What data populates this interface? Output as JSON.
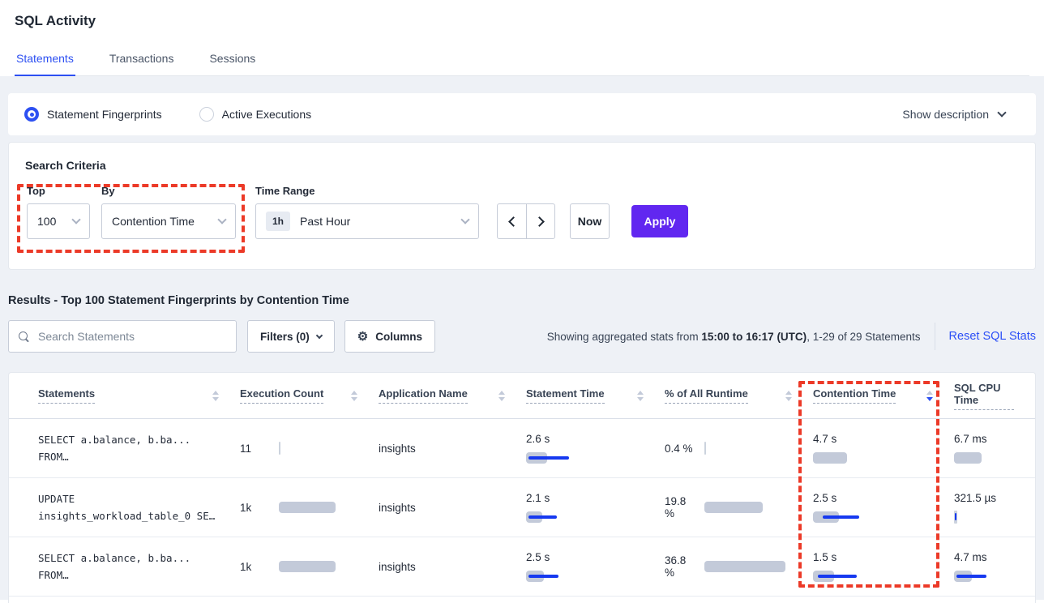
{
  "page_title": "SQL Activity",
  "tabs": [
    {
      "label": "Statements",
      "active": true
    },
    {
      "label": "Transactions",
      "active": false
    },
    {
      "label": "Sessions",
      "active": false
    }
  ],
  "view_toggle": {
    "options": [
      {
        "label": "Statement Fingerprints",
        "selected": true
      },
      {
        "label": "Active Executions",
        "selected": false
      }
    ],
    "show_description": "Show description"
  },
  "search_criteria": {
    "title": "Search Criteria",
    "top": {
      "label": "Top",
      "value": "100"
    },
    "by": {
      "label": "By",
      "value": "Contention Time"
    },
    "time_range": {
      "label": "Time Range",
      "badge": "1h",
      "value": "Past Hour"
    },
    "now_label": "Now",
    "apply_label": "Apply"
  },
  "results": {
    "heading": "Results - Top 100 Statement Fingerprints by Contention Time",
    "search_placeholder": "Search Statements",
    "filters_label": "Filters (0)",
    "columns_label": "Columns",
    "stats_prefix": "Showing aggregated stats from ",
    "stats_bold": "15:00 to 16:17 (UTC)",
    "stats_suffix": ", 1-29 of 29 Statements",
    "reset_link": "Reset SQL Stats"
  },
  "table": {
    "columns": [
      {
        "label": "Statements",
        "sort": "both"
      },
      {
        "label": "Execution Count",
        "sort": "both"
      },
      {
        "label": "Application Name",
        "sort": "both"
      },
      {
        "label": "Statement Time",
        "sort": "both"
      },
      {
        "label": "% of All Runtime",
        "sort": "both"
      },
      {
        "label": "Contention Time",
        "sort": "desc"
      },
      {
        "label": "SQL CPU Time",
        "sort": "none"
      }
    ],
    "sorted_column": "Contention Time",
    "rows": [
      {
        "statement_lines": [
          "SELECT a.balance, b.ba...",
          "FROM…"
        ],
        "execution_count": {
          "text": "11",
          "bar": {
            "gray": 2,
            "tick": true
          }
        },
        "application_name": "insights",
        "statement_time": {
          "text": "2.6 s",
          "bar": {
            "gray": 26,
            "blue_start": 3,
            "blue_len": 50
          }
        },
        "pct_runtime": {
          "text": "0.4 %",
          "bar": {
            "gray": 2,
            "tick": true
          }
        },
        "contention_time": {
          "text": "4.7 s",
          "bar": {
            "gray": 42
          }
        },
        "sql_cpu_time": {
          "text": "6.7 ms",
          "bar": {
            "gray": 34
          }
        }
      },
      {
        "statement_lines": [
          "UPDATE",
          "insights_workload_table_0 SE…"
        ],
        "execution_count": {
          "text": "1k",
          "bar": {
            "gray": 70
          }
        },
        "application_name": "insights",
        "statement_time": {
          "text": "2.1 s",
          "bar": {
            "gray": 20,
            "blue_start": 3,
            "blue_len": 35
          }
        },
        "pct_runtime": {
          "text": "19.8 %",
          "bar": {
            "gray": 72
          }
        },
        "contention_time": {
          "text": "2.5 s",
          "bar": {
            "gray": 32,
            "blue_start": 12,
            "blue_len": 45
          }
        },
        "sql_cpu_time": {
          "text": "321.5 µs",
          "bar": {
            "gray": 4,
            "tick": true,
            "blue_start": 1,
            "blue_len": 2
          }
        }
      },
      {
        "statement_lines": [
          "SELECT a.balance, b.ba...",
          "FROM…"
        ],
        "execution_count": {
          "text": "1k",
          "bar": {
            "gray": 70
          }
        },
        "application_name": "insights",
        "statement_time": {
          "text": "2.5 s",
          "bar": {
            "gray": 22,
            "blue_start": 3,
            "blue_len": 37
          }
        },
        "pct_runtime": {
          "text": "36.8 %",
          "bar": {
            "gray": 100
          }
        },
        "contention_time": {
          "text": "1.5 s",
          "bar": {
            "gray": 26,
            "blue_start": 6,
            "blue_len": 48
          }
        },
        "sql_cpu_time": {
          "text": "4.7 ms",
          "bar": {
            "gray": 22,
            "blue_start": 3,
            "blue_len": 37
          }
        }
      }
    ]
  },
  "colors": {
    "accent_blue": "#2d50f2",
    "link_blue": "#2d50f7",
    "apply_purple": "#6127f0",
    "annotation_red": "#ec3a28",
    "bar_gray": "#c3cad9",
    "bar_blue": "#1639f0",
    "body_bg": "#eef1f6"
  }
}
